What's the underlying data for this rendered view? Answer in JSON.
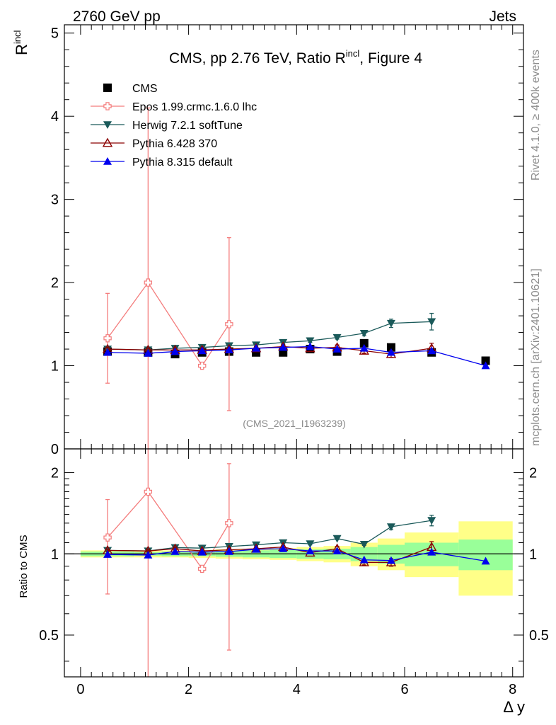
{
  "header": {
    "energy_label": "2760 GeV pp",
    "category_label": "Jets"
  },
  "side_text": {
    "rivet": "Rivet 4.1.0, ≥ 400k events",
    "mcplots": "mcplots.cern.ch [arXiv:2401.10621]"
  },
  "chart_data": [
    {
      "type": "scatter",
      "panel": "main",
      "title": "CMS, pp 2.76 TeV, Ratio R",
      "title_sup": "incl",
      "title_suffix": ", Figure 4",
      "watermark": "(CMS_2021_I1963239)",
      "ylabel": "R",
      "ylabel_sup": "incl",
      "xlabel": "Δ y",
      "xlim": [
        -0.3,
        8.2
      ],
      "ylim": [
        0,
        5.1
      ],
      "x_ticks": [
        "0",
        "2",
        "4",
        "6",
        "8"
      ],
      "y_ticks": [
        "0",
        "1",
        "2",
        "3",
        "4",
        "5"
      ],
      "legend_position": "top-left",
      "series": [
        {
          "name": "CMS",
          "color": "#000000",
          "marker": "square",
          "x": [
            0.5,
            1.25,
            1.75,
            2.25,
            2.75,
            3.25,
            3.75,
            4.25,
            4.75,
            5.25,
            5.75,
            6.5,
            7.5
          ],
          "y": [
            1.17,
            1.16,
            1.14,
            1.16,
            1.17,
            1.16,
            1.16,
            1.2,
            1.17,
            1.27,
            1.22,
            1.16,
            1.06
          ]
        },
        {
          "name": "Epos 1.99.crmc.1.6.0 lhc",
          "color": "#f47c7c",
          "marker": "cross",
          "x": [
            0.5,
            1.25,
            2.25,
            2.75
          ],
          "y": [
            1.33,
            2.0,
            1.0,
            1.5
          ],
          "err": [
            0.54,
            2.1,
            0.03,
            1.04
          ]
        },
        {
          "name": "Herwig 7.2.1 softTune",
          "color": "#1b5a5a",
          "marker": "triangle-down",
          "x": [
            0.5,
            1.25,
            1.75,
            2.25,
            2.75,
            3.25,
            3.75,
            4.25,
            4.75,
            5.25,
            5.75,
            6.5
          ],
          "y": [
            1.2,
            1.19,
            1.21,
            1.22,
            1.24,
            1.25,
            1.28,
            1.3,
            1.34,
            1.39,
            1.51,
            1.53
          ],
          "err": [
            0.02,
            0.02,
            0.02,
            0.02,
            0.02,
            0.02,
            0.02,
            0.02,
            0.02,
            0.03,
            0.05,
            0.1
          ]
        },
        {
          "name": "Pythia 6.428 370",
          "color": "#8b0000",
          "marker": "triangle-open",
          "x": [
            0.5,
            1.25,
            1.75,
            2.25,
            2.75,
            3.25,
            3.75,
            4.25,
            4.75,
            5.25,
            5.75,
            6.5
          ],
          "y": [
            1.2,
            1.19,
            1.19,
            1.19,
            1.2,
            1.21,
            1.23,
            1.21,
            1.22,
            1.18,
            1.14,
            1.21
          ],
          "err": [
            0.02,
            0.02,
            0.02,
            0.02,
            0.02,
            0.02,
            0.02,
            0.02,
            0.03,
            0.03,
            0.04,
            0.06
          ]
        },
        {
          "name": "Pythia 8.315 default",
          "color": "#0000ee",
          "marker": "triangle",
          "x": [
            0.5,
            1.25,
            1.75,
            2.25,
            2.75,
            3.25,
            3.75,
            4.25,
            4.75,
            5.25,
            5.75,
            6.5,
            7.5
          ],
          "y": [
            1.16,
            1.15,
            1.17,
            1.18,
            1.19,
            1.21,
            1.22,
            1.23,
            1.2,
            1.21,
            1.16,
            1.18,
            1.0
          ]
        }
      ]
    },
    {
      "type": "scatter",
      "panel": "ratio",
      "ylabel": "Ratio to CMS",
      "xlabel": "Δ y",
      "xlim": [
        -0.3,
        8.2
      ],
      "ylim": [
        0.35,
        2.45
      ],
      "y_scale": "log",
      "y_ticks": [
        "0.5",
        "1",
        "2"
      ],
      "reference_line": 1,
      "uncertainty_bands": {
        "bins": [
          [
            0.0,
            1.0
          ],
          [
            1.0,
            1.5
          ],
          [
            1.5,
            2.0
          ],
          [
            2.0,
            2.5
          ],
          [
            2.5,
            3.0
          ],
          [
            3.0,
            3.5
          ],
          [
            3.5,
            4.0
          ],
          [
            4.0,
            4.5
          ],
          [
            4.5,
            5.0
          ],
          [
            5.0,
            5.5
          ],
          [
            5.5,
            6.0
          ],
          [
            6.0,
            7.0
          ],
          [
            7.0,
            8.0
          ]
        ],
        "inner": [
          [
            0.98,
            1.02
          ],
          [
            0.985,
            1.015
          ],
          [
            0.98,
            1.02
          ],
          [
            0.98,
            1.02
          ],
          [
            0.975,
            1.025
          ],
          [
            0.97,
            1.03
          ],
          [
            0.965,
            1.035
          ],
          [
            0.96,
            1.04
          ],
          [
            0.955,
            1.045
          ],
          [
            0.94,
            1.06
          ],
          [
            0.92,
            1.08
          ],
          [
            0.9,
            1.1
          ],
          [
            0.87,
            1.13
          ]
        ],
        "outer": [
          [
            0.97,
            1.03
          ],
          [
            0.97,
            1.03
          ],
          [
            0.97,
            1.03
          ],
          [
            0.965,
            1.035
          ],
          [
            0.96,
            1.04
          ],
          [
            0.955,
            1.045
          ],
          [
            0.95,
            1.05
          ],
          [
            0.94,
            1.06
          ],
          [
            0.93,
            1.07
          ],
          [
            0.9,
            1.1
          ],
          [
            0.87,
            1.14
          ],
          [
            0.82,
            1.2
          ],
          [
            0.7,
            1.32
          ]
        ],
        "inner_color": "#99ff99",
        "outer_color": "#ffff88"
      },
      "series": [
        {
          "name": "Epos 1.99.crmc.1.6.0 lhc",
          "color": "#f47c7c",
          "marker": "cross",
          "x": [
            0.5,
            1.25,
            2.25,
            2.75
          ],
          "y": [
            1.15,
            1.7,
            0.88,
            1.3
          ],
          "err": [
            0.44,
            1.9,
            0.02,
            0.86
          ]
        },
        {
          "name": "Herwig 7.2.1 softTune",
          "color": "#1b5a5a",
          "marker": "triangle-down",
          "x": [
            0.5,
            1.25,
            1.75,
            2.25,
            2.75,
            3.25,
            3.75,
            4.25,
            4.75,
            5.25,
            5.75,
            6.5
          ],
          "y": [
            1.03,
            1.025,
            1.055,
            1.05,
            1.065,
            1.08,
            1.1,
            1.09,
            1.14,
            1.085,
            1.26,
            1.33
          ],
          "err": [
            0.01,
            0.01,
            0.01,
            0.01,
            0.01,
            0.01,
            0.01,
            0.01,
            0.01,
            0.01,
            0.03,
            0.06
          ]
        },
        {
          "name": "Pythia 6.428 370",
          "color": "#8b0000",
          "marker": "triangle-open",
          "x": [
            0.5,
            1.25,
            1.75,
            2.25,
            2.75,
            3.25,
            3.75,
            4.25,
            4.75,
            5.25,
            5.75,
            6.5
          ],
          "y": [
            1.03,
            1.025,
            1.045,
            1.025,
            1.035,
            1.045,
            1.06,
            1.01,
            1.045,
            0.93,
            0.93,
            1.06
          ],
          "err": [
            0.01,
            0.01,
            0.01,
            0.01,
            0.01,
            0.01,
            0.01,
            0.01,
            0.02,
            0.02,
            0.03,
            0.05
          ]
        },
        {
          "name": "Pythia 8.315 default",
          "color": "#0000ee",
          "marker": "triangle",
          "x": [
            0.5,
            1.25,
            1.75,
            2.25,
            2.75,
            3.25,
            3.75,
            4.25,
            4.75,
            5.25,
            5.75,
            6.5,
            7.5
          ],
          "y": [
            0.995,
            0.99,
            1.02,
            1.015,
            1.02,
            1.04,
            1.045,
            1.025,
            1.025,
            0.95,
            0.945,
            1.015,
            0.94
          ]
        }
      ]
    }
  ]
}
